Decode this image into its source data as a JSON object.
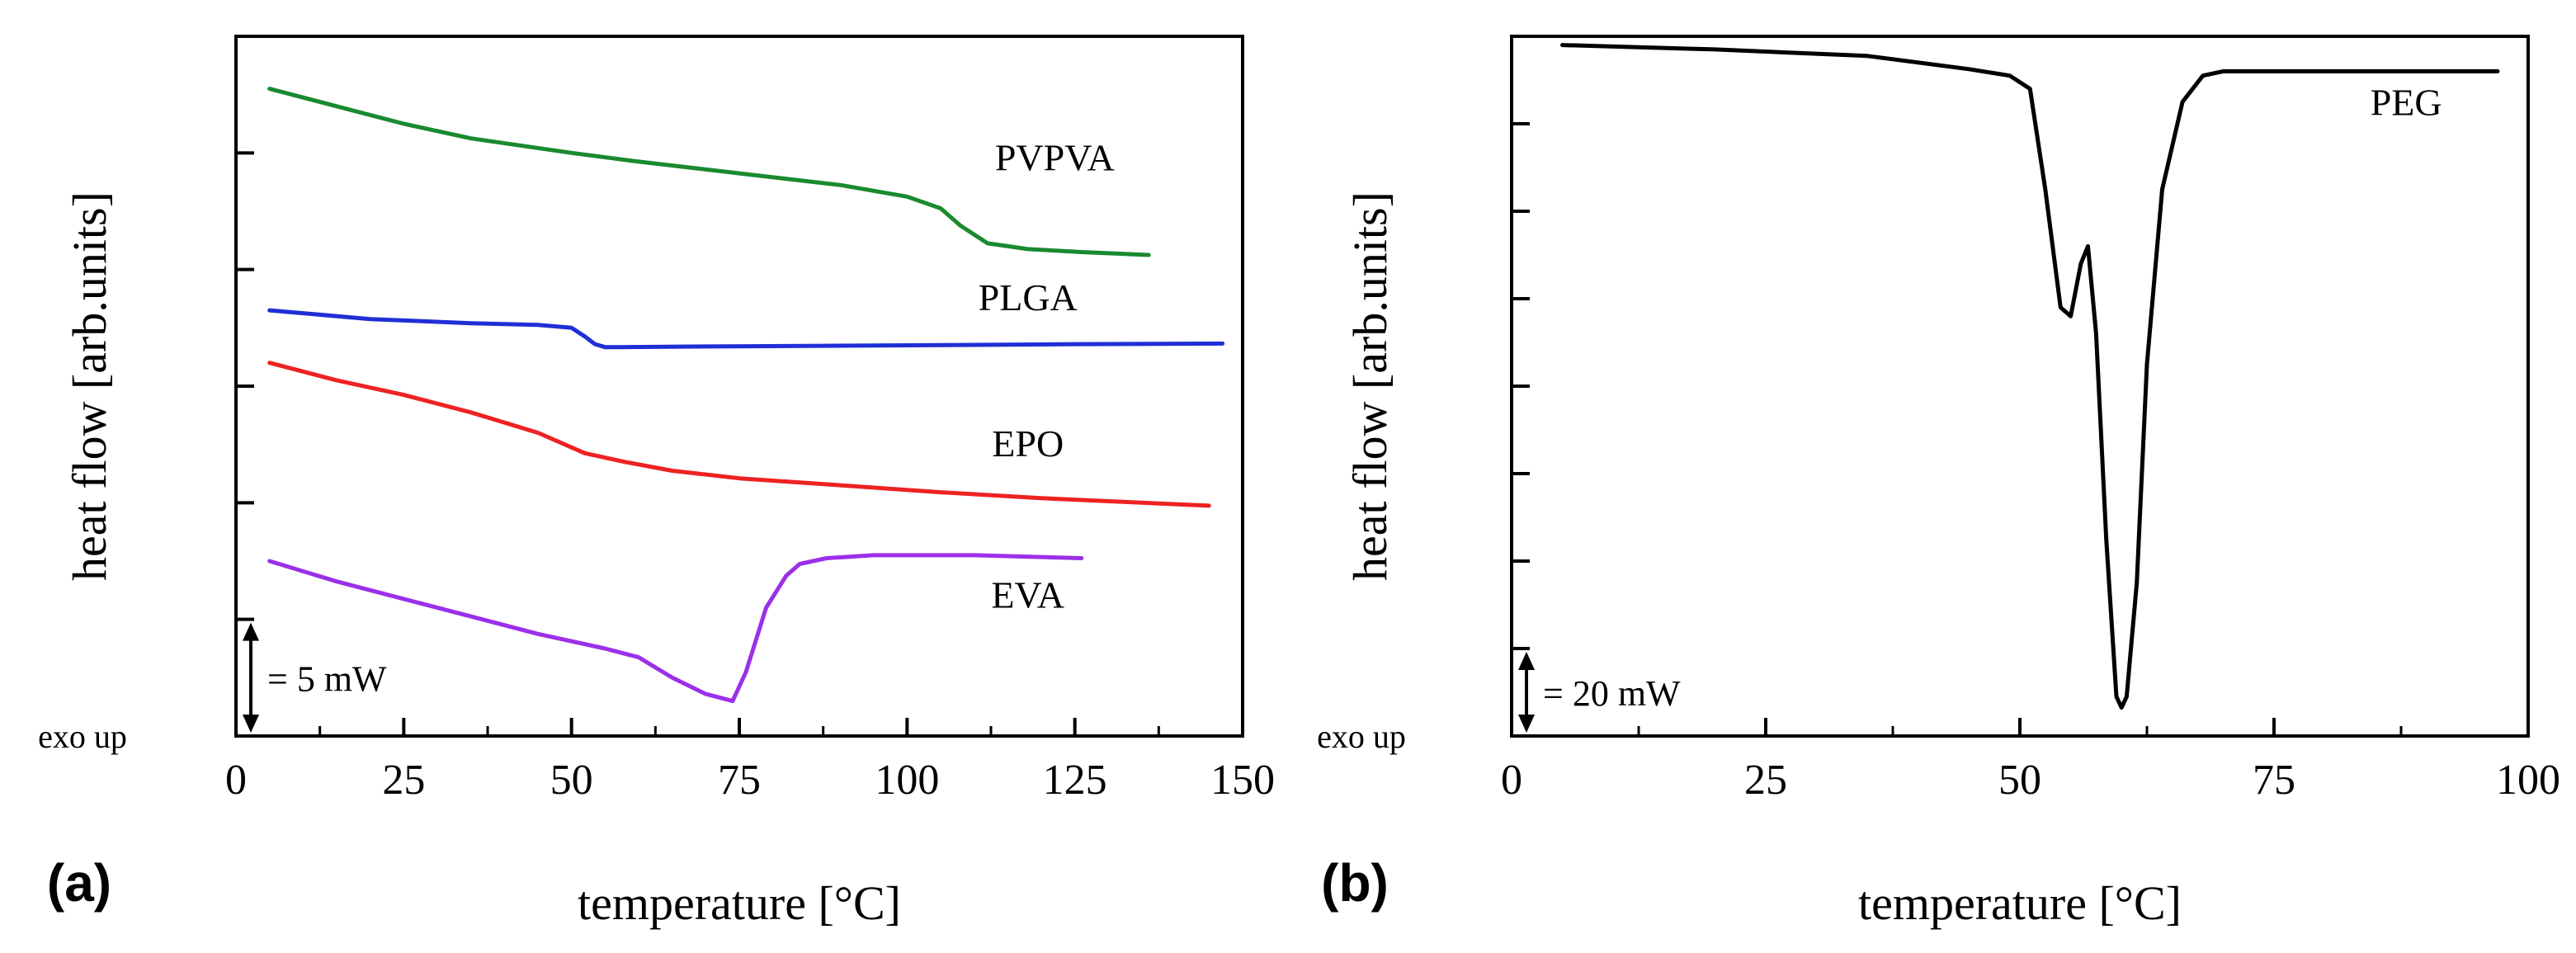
{
  "chart_data": [
    {
      "type": "line",
      "panel_label": "(a)",
      "xlabel": "temperature [°C]",
      "ylabel": "heat flow [arb.units]",
      "xlim": [
        0,
        150
      ],
      "x_ticks": [
        "0",
        "25",
        "50",
        "75",
        "100",
        "125",
        "150"
      ],
      "ylim": [
        0,
        12
      ],
      "y_tick_values": [
        2,
        4,
        6,
        8,
        10,
        12
      ],
      "exo_label": "exo up",
      "scale_bar": {
        "label": "= 5 mW",
        "from": 0,
        "to": 2
      },
      "series": [
        {
          "name": "PVPVA",
          "color": "#1a8a2e",
          "label_at": [
            122,
            9.7
          ],
          "x": [
            5,
            15,
            25,
            35,
            50,
            60,
            75,
            90,
            100,
            105,
            108,
            112,
            118,
            126,
            136
          ],
          "y": [
            11.1,
            10.8,
            10.5,
            10.25,
            10.0,
            9.85,
            9.65,
            9.45,
            9.25,
            9.05,
            8.75,
            8.45,
            8.35,
            8.3,
            8.25
          ]
        },
        {
          "name": "PLGA",
          "color": "#1f2fd6",
          "label_at": [
            118,
            7.3
          ],
          "x": [
            5,
            20,
            35,
            45,
            50,
            52,
            53.5,
            55,
            57,
            70,
            100,
            125,
            147
          ],
          "y": [
            7.3,
            7.15,
            7.08,
            7.05,
            7.0,
            6.85,
            6.72,
            6.67,
            6.67,
            6.68,
            6.7,
            6.72,
            6.73
          ]
        },
        {
          "name": "EPO",
          "color": "#ee2222",
          "label_at": [
            118,
            4.8
          ],
          "x": [
            5,
            15,
            25,
            35,
            45,
            52,
            58,
            65,
            75,
            90,
            105,
            120,
            135,
            145
          ],
          "y": [
            6.4,
            6.1,
            5.85,
            5.55,
            5.2,
            4.85,
            4.7,
            4.55,
            4.42,
            4.3,
            4.18,
            4.08,
            4.0,
            3.95
          ]
        },
        {
          "name": "EVA",
          "color": "#9b30e8",
          "label_at": [
            118,
            2.2
          ],
          "x": [
            5,
            15,
            25,
            35,
            45,
            55,
            60,
            65,
            70,
            74,
            76,
            79,
            82,
            84,
            88,
            95,
            110,
            126
          ],
          "y": [
            3.0,
            2.65,
            2.35,
            2.05,
            1.75,
            1.5,
            1.35,
            1.0,
            0.72,
            0.6,
            1.1,
            2.2,
            2.75,
            2.95,
            3.05,
            3.1,
            3.1,
            3.05
          ]
        }
      ]
    },
    {
      "type": "line",
      "panel_label": "(b)",
      "xlabel": "temperature [°C]",
      "ylabel": "heat flow [arb.units]",
      "xlim": [
        0,
        100
      ],
      "x_ticks": [
        "0",
        "25",
        "50",
        "75",
        "100"
      ],
      "ylim": [
        0,
        16
      ],
      "y_tick_values": [
        2,
        4,
        6,
        8,
        10,
        12,
        14
      ],
      "exo_label": "exo up",
      "scale_bar": {
        "label": "= 20 mW",
        "from": 0,
        "to": 2
      },
      "series": [
        {
          "name": "PEG",
          "color": "#000000",
          "label_at": [
            88,
            14.2
          ],
          "x": [
            5,
            20,
            35,
            45,
            49,
            51,
            52.5,
            54,
            55,
            56,
            56.7,
            57.5,
            58.5,
            59.5,
            60,
            60.5,
            61.5,
            62.5,
            64,
            66,
            68,
            70,
            80,
            97
          ],
          "y": [
            15.8,
            15.7,
            15.55,
            15.25,
            15.1,
            14.8,
            12.5,
            9.8,
            9.6,
            10.8,
            11.2,
            9.2,
            4.5,
            0.9,
            0.65,
            0.9,
            3.5,
            8.5,
            12.5,
            14.5,
            15.1,
            15.2,
            15.2,
            15.2
          ]
        }
      ]
    }
  ]
}
